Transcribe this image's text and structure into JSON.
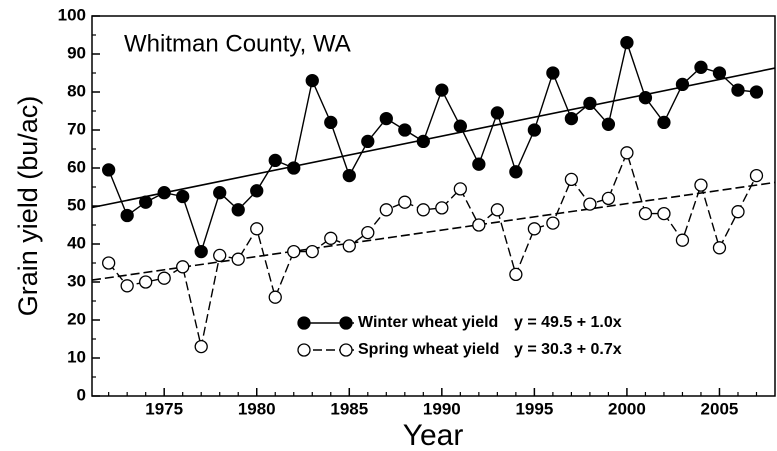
{
  "chart_data": {
    "type": "line",
    "annotation": "Whitman County, WA",
    "xlabel": "Year",
    "ylabel": "Grain yield (bu/ac)",
    "x": [
      1972,
      1973,
      1974,
      1975,
      1976,
      1977,
      1978,
      1979,
      1980,
      1981,
      1982,
      1983,
      1984,
      1985,
      1986,
      1987,
      1988,
      1989,
      1990,
      1991,
      1992,
      1993,
      1994,
      1995,
      1996,
      1997,
      1998,
      1999,
      2000,
      2001,
      2002,
      2003,
      2004,
      2005,
      2006,
      2007
    ],
    "series": [
      {
        "name": "Winter wheat yield",
        "equation": "y = 49.5 + 1.0x",
        "color": "#000000",
        "marker_fill": "#000000",
        "line_style": "solid",
        "values": [
          59.5,
          47.5,
          51,
          53.5,
          52.5,
          38,
          53.5,
          49,
          54,
          62,
          60,
          83,
          72,
          58,
          67,
          73,
          70,
          67,
          80.5,
          71,
          61,
          74.5,
          59,
          70,
          85,
          73,
          77,
          71.5,
          93,
          78.5,
          72,
          82,
          86.5,
          85,
          80.5,
          80
        ],
        "trend": {
          "x": [
            1971.1,
            2008
          ],
          "values": [
            49.6,
            86.3
          ]
        }
      },
      {
        "name": "Spring wheat yield",
        "equation": "y = 30.3 + 0.7x",
        "color": "#000000",
        "marker_fill": "#ffffff",
        "line_style": "dashed",
        "values": [
          35,
          29,
          30,
          31,
          34,
          13,
          37,
          36,
          44,
          26,
          38,
          38,
          41.5,
          39.5,
          43,
          49,
          51,
          49,
          49.5,
          54.5,
          45,
          49,
          32,
          44,
          45.5,
          57,
          50.5,
          52,
          64,
          48,
          48,
          41,
          55.5,
          39,
          48.5,
          58
        ],
        "trend": {
          "x": [
            1971.1,
            2008
          ],
          "values": [
            30.5,
            56.2
          ]
        }
      }
    ],
    "xlim": [
      1971.1,
      2008
    ],
    "ylim": [
      0,
      100
    ],
    "xticks": [
      1975,
      1980,
      1985,
      1990,
      1995,
      2000,
      2005
    ],
    "xminorticks": [
      1972,
      1973,
      1974,
      1976,
      1977,
      1978,
      1979,
      1981,
      1982,
      1983,
      1984,
      1986,
      1987,
      1988,
      1989,
      1991,
      1992,
      1993,
      1994,
      1996,
      1997,
      1998,
      1999,
      2001,
      2002,
      2003,
      2004,
      2006,
      2007
    ],
    "yticks": [
      0,
      10,
      20,
      30,
      40,
      50,
      60,
      70,
      80,
      90,
      100
    ],
    "yminorticks": [
      5,
      15,
      25,
      35,
      45,
      55,
      65,
      75,
      85,
      95
    ],
    "grid": false
  }
}
